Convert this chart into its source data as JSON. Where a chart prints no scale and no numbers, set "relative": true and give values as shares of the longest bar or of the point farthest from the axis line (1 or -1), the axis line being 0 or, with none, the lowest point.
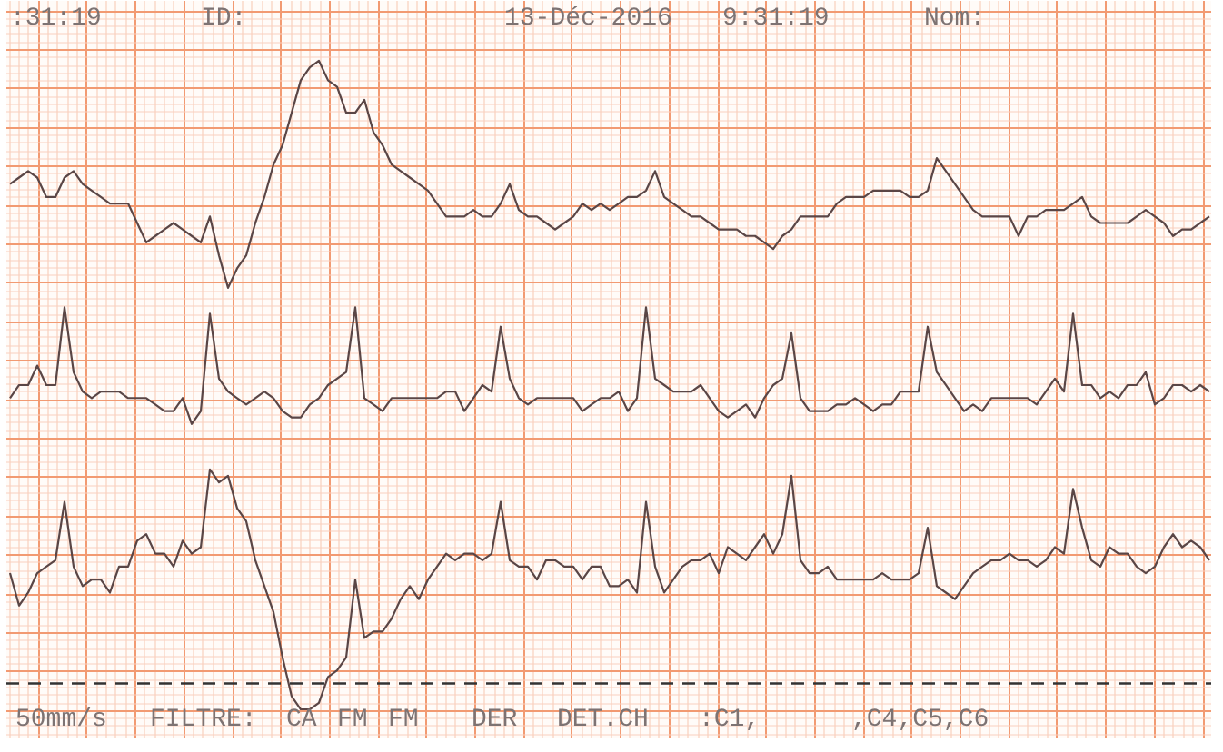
{
  "chart_data": {
    "type": "line",
    "relative": true,
    "grid": true,
    "categories": [
      null,
      null,
      null,
      null,
      null,
      null,
      null,
      null,
      null,
      null,
      null,
      null,
      null,
      null,
      null,
      null,
      null,
      null,
      null,
      null,
      null,
      null,
      null,
      null,
      null,
      null,
      null,
      null,
      null,
      null,
      null,
      null,
      null,
      null,
      null,
      null,
      null,
      null,
      null,
      null,
      null,
      null,
      null,
      null,
      null,
      null,
      null,
      null,
      null,
      null,
      null,
      null,
      null,
      null,
      null,
      null,
      null,
      null,
      null,
      null,
      null,
      null,
      null,
      null,
      null,
      null,
      null,
      null,
      null,
      null,
      null,
      null,
      null,
      null,
      null,
      null,
      null,
      null,
      null,
      null,
      null,
      null,
      null,
      null,
      null,
      null,
      null,
      null,
      null,
      null,
      null,
      null,
      null,
      null,
      null,
      null,
      null,
      null,
      null,
      null,
      null,
      null,
      null,
      null,
      null,
      null,
      null,
      null,
      null,
      null,
      null,
      null,
      null,
      null,
      null,
      null,
      null,
      null,
      null,
      null,
      null,
      null,
      null,
      null,
      null,
      null,
      null,
      null,
      null,
      null,
      null,
      null,
      null
    ],
    "series": [
      {
        "color": "#5a4646",
        "values": [
          0.81,
          0.82,
          0.83,
          0.82,
          0.79,
          0.79,
          0.82,
          0.83,
          0.81,
          0.8,
          0.79,
          0.78,
          0.78,
          0.78,
          0.75,
          0.72,
          0.73,
          0.74,
          0.75,
          0.74,
          0.73,
          0.72,
          0.76,
          0.7,
          0.65,
          0.68,
          0.7,
          0.75,
          0.79,
          0.84,
          0.87,
          0.92,
          0.97,
          0.99,
          1,
          0.97,
          0.96,
          0.92,
          0.92,
          0.94,
          0.89,
          0.87,
          0.84,
          0.83,
          0.82,
          0.81,
          0.8,
          0.78,
          0.76,
          0.76,
          0.76,
          0.77,
          0.76,
          0.76,
          0.78,
          0.81,
          0.77,
          0.76,
          0.76,
          0.75,
          0.74,
          0.75,
          0.76,
          0.78,
          0.77,
          0.78,
          0.77,
          0.78,
          0.79,
          0.79,
          0.8,
          0.83,
          0.79,
          0.78,
          0.77,
          0.76,
          0.76,
          0.75,
          0.74,
          0.74,
          0.74,
          0.73,
          0.73,
          0.72,
          0.71,
          0.73,
          0.74,
          0.76,
          0.76,
          0.76,
          0.76,
          0.78,
          0.79,
          0.79,
          0.79,
          0.8,
          0.8,
          0.8,
          0.8,
          0.79,
          0.79,
          0.8,
          0.85,
          0.83,
          0.81,
          0.79,
          0.77,
          0.76,
          0.76,
          0.76,
          0.76,
          0.73,
          0.76,
          0.76,
          0.77,
          0.77,
          0.77,
          0.78,
          0.79,
          0.76,
          0.75,
          0.75,
          0.75,
          0.75,
          0.76,
          0.77,
          0.76,
          0.75,
          0.73,
          0.74,
          0.74,
          0.75,
          0.76
        ]
      },
      {
        "color": "#5a4646",
        "values": [
          0.48,
          0.5,
          0.5,
          0.53,
          0.5,
          0.5,
          0.62,
          0.52,
          0.49,
          0.48,
          0.49,
          0.49,
          0.49,
          0.48,
          0.48,
          0.48,
          0.47,
          0.46,
          0.46,
          0.48,
          0.44,
          0.46,
          0.61,
          0.51,
          0.49,
          0.48,
          0.47,
          0.48,
          0.49,
          0.48,
          0.46,
          0.45,
          0.45,
          0.47,
          0.48,
          0.5,
          0.51,
          0.52,
          0.62,
          0.48,
          0.47,
          0.46,
          0.48,
          0.48,
          0.48,
          0.48,
          0.48,
          0.48,
          0.49,
          0.49,
          0.46,
          0.48,
          0.5,
          0.49,
          0.59,
          0.51,
          0.48,
          0.47,
          0.48,
          0.48,
          0.48,
          0.48,
          0.48,
          0.46,
          0.47,
          0.48,
          0.48,
          0.49,
          0.46,
          0.48,
          0.62,
          0.51,
          0.5,
          0.49,
          0.49,
          0.49,
          0.5,
          0.48,
          0.46,
          0.45,
          0.46,
          0.47,
          0.45,
          0.48,
          0.5,
          0.51,
          0.58,
          0.48,
          0.46,
          0.46,
          0.46,
          0.47,
          0.47,
          0.48,
          0.47,
          0.46,
          0.47,
          0.47,
          0.49,
          0.49,
          0.49,
          0.59,
          0.52,
          0.5,
          0.48,
          0.46,
          0.47,
          0.46,
          0.48,
          0.48,
          0.48,
          0.48,
          0.48,
          0.47,
          0.49,
          0.51,
          0.49,
          0.61,
          0.5,
          0.5,
          0.48,
          0.49,
          0.48,
          0.5,
          0.5,
          0.52,
          0.47,
          0.48,
          0.5,
          0.5,
          0.49,
          0.5,
          0.49
        ]
      },
      {
        "color": "#5a4646",
        "values": [
          0.21,
          0.16,
          0.18,
          0.21,
          0.22,
          0.23,
          0.32,
          0.22,
          0.19,
          0.2,
          0.2,
          0.18,
          0.22,
          0.22,
          0.26,
          0.27,
          0.24,
          0.24,
          0.22,
          0.26,
          0.24,
          0.25,
          0.37,
          0.35,
          0.36,
          0.31,
          0.29,
          0.23,
          0.19,
          0.15,
          0.08,
          0.02,
          0,
          0,
          0.01,
          0.05,
          0.06,
          0.08,
          0.2,
          0.11,
          0.12,
          0.12,
          0.14,
          0.17,
          0.19,
          0.17,
          0.2,
          0.22,
          0.24,
          0.23,
          0.24,
          0.24,
          0.23,
          0.24,
          0.32,
          0.23,
          0.22,
          0.22,
          0.2,
          0.23,
          0.23,
          0.22,
          0.22,
          0.2,
          0.22,
          0.22,
          0.19,
          0.19,
          0.2,
          0.18,
          0.32,
          0.22,
          0.18,
          0.2,
          0.22,
          0.23,
          0.23,
          0.24,
          0.21,
          0.25,
          0.24,
          0.23,
          0.25,
          0.27,
          0.24,
          0.27,
          0.36,
          0.23,
          0.21,
          0.21,
          0.22,
          0.2,
          0.2,
          0.2,
          0.2,
          0.2,
          0.21,
          0.2,
          0.2,
          0.2,
          0.21,
          0.28,
          0.19,
          0.18,
          0.17,
          0.19,
          0.21,
          0.22,
          0.23,
          0.23,
          0.24,
          0.23,
          0.23,
          0.22,
          0.23,
          0.25,
          0.24,
          0.34,
          0.28,
          0.23,
          0.22,
          0.25,
          0.24,
          0.24,
          0.22,
          0.21,
          0.22,
          0.25,
          0.27,
          0.25,
          0.26,
          0.25,
          0.23
        ]
      }
    ],
    "ref_lines": [
      {
        "axis": "y",
        "value": 0.04,
        "color": "#333333",
        "line_style": "dashed"
      }
    ],
    "annotations": [
      ":31:19",
      "ID:",
      "13-Déc-2016",
      "9:31:19",
      "Nom:",
      "50mm/s",
      "FILTRE:",
      "CA",
      "FM",
      "FM",
      "DER",
      "DET.CH",
      ":C1,",
      ",C4,C5,C6"
    ]
  }
}
